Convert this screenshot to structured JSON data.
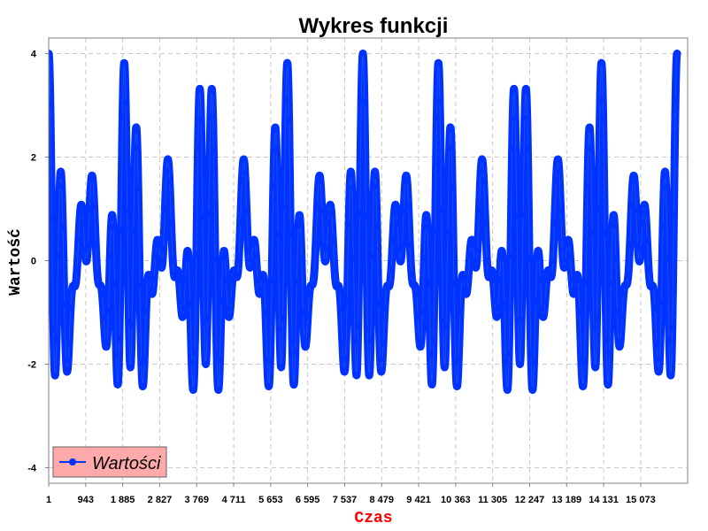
{
  "chart_data": {
    "type": "line",
    "title": "Wykres funkcji",
    "xlabel": "Czas",
    "ylabel": "Wartość",
    "xlim": [
      0,
      16270
    ],
    "ylim": [
      -4.3,
      4.3
    ],
    "x_ticks": [
      1,
      943,
      1885,
      2827,
      3769,
      4711,
      5653,
      6595,
      7537,
      8479,
      9421,
      10363,
      11305,
      12247,
      13189,
      14131,
      15073
    ],
    "x_tick_labels": [
      "1",
      "943",
      "1 885",
      "2 827",
      "3 769",
      "4 711",
      "5 653",
      "6 595",
      "7 537",
      "8 479",
      "9 421",
      "10 363",
      "11 305",
      "12 247",
      "13 189",
      "14 131",
      "15 073"
    ],
    "y_ticks": [
      -4,
      -2,
      0,
      2,
      4
    ],
    "y_tick_labels": [
      "-4",
      "-2",
      "0",
      "2",
      "4"
    ],
    "grid": true,
    "legend_position": "bottom-left",
    "series": [
      {
        "name": "Wartości",
        "color": "#0033ff",
        "function": "sin(2π·0.0014·t) + sin(2π·0.0039·t) + ... (sum of oscillations)",
        "x_start": 1,
        "x_end": 16000,
        "y_min": -4,
        "y_max": 4,
        "envelope_period": 4000,
        "marker": "circle"
      }
    ],
    "colors": {
      "series": "#0033ff",
      "xlabel": "#ff0000",
      "legend_bg": "#ffaaaa"
    }
  }
}
